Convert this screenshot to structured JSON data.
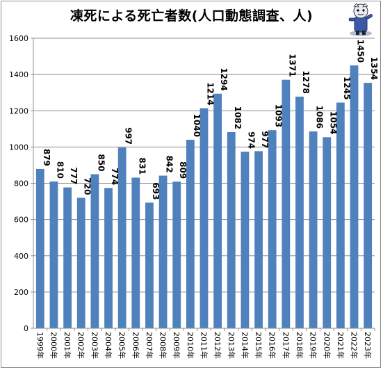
{
  "title": "凍死による死亡者数(人口動態調査、人)",
  "chart_data": {
    "type": "bar",
    "title": "凍死による死亡者数(人口動態調査、人)",
    "xlabel": "",
    "ylabel": "",
    "categories": [
      "1999年",
      "2000年",
      "2001年",
      "2002年",
      "2003年",
      "2004年",
      "2005年",
      "2006年",
      "2007年",
      "2008年",
      "2009年",
      "2010年",
      "2011年",
      "2012年",
      "2013年",
      "2014年",
      "2015年",
      "2016年",
      "2017年",
      "2018年",
      "2019年",
      "2020年",
      "2021年",
      "2022年",
      "2023年"
    ],
    "values": [
      879,
      810,
      777,
      720,
      850,
      774,
      997,
      831,
      693,
      842,
      809,
      1040,
      1214,
      1294,
      1082,
      974,
      977,
      1093,
      1371,
      1278,
      1086,
      1054,
      1245,
      1450,
      1354
    ],
    "ylim": [
      0,
      1600
    ],
    "yticks": [
      0,
      200,
      400,
      600,
      800,
      1000,
      1200,
      1400,
      1600
    ],
    "grid": true,
    "legend": "none",
    "bar_color": "#4f81bd"
  },
  "mascot": {
    "icon": "mascot-character-icon"
  }
}
